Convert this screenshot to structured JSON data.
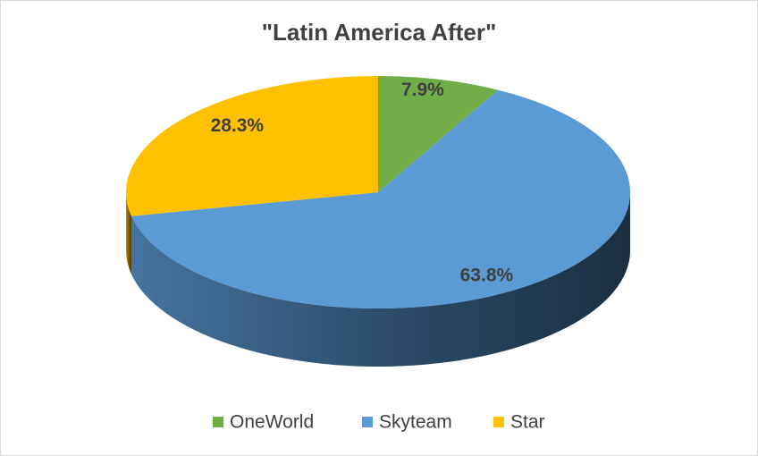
{
  "chart_data": {
    "type": "pie",
    "title": "\"Latin America After\"",
    "categories": [
      "OneWorld",
      "Skyteam",
      "Star"
    ],
    "values": [
      7.9,
      63.8,
      28.3
    ],
    "value_labels": [
      "7.9%",
      "63.8%",
      "28.3%"
    ],
    "colors": [
      "#70ad47",
      "#5b9bd5",
      "#ffc000"
    ]
  }
}
